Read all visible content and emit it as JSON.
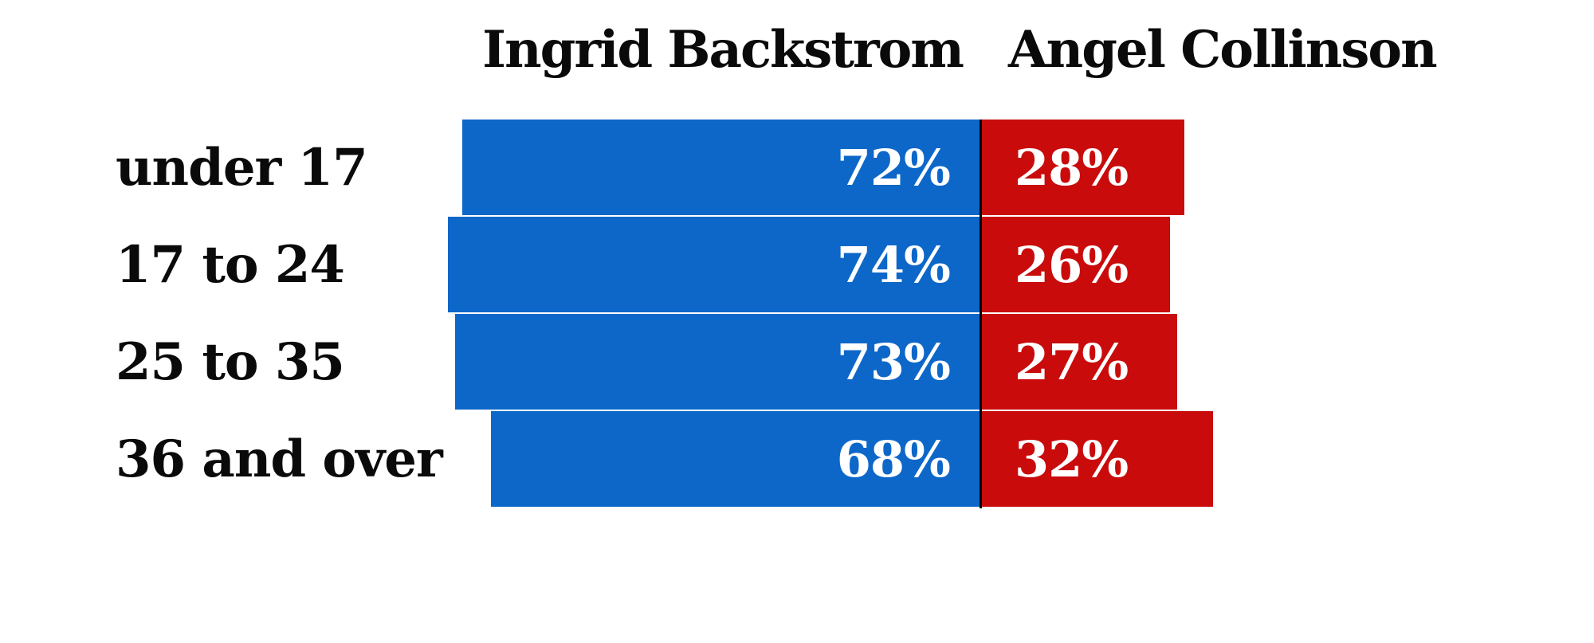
{
  "chart_data": {
    "type": "bar",
    "subtype": "horizontal-diverging-stacked",
    "title": "",
    "categories": [
      "under 17",
      "17 to 24",
      "25 to 35",
      "36 and over"
    ],
    "series": [
      {
        "name": "Ingrid Backstrom",
        "color": "#0d67c9",
        "values": [
          72,
          74,
          73,
          68
        ]
      },
      {
        "name": "Angel Collinson",
        "color": "#c90b0b",
        "values": [
          28,
          26,
          27,
          32
        ]
      }
    ],
    "labels": {
      "left": [
        "72%",
        "74%",
        "73%",
        "68%"
      ],
      "right": [
        "28%",
        "26%",
        "27%",
        "32%"
      ]
    },
    "value_unit": "%",
    "axis_range": [
      0,
      100
    ],
    "grid": false,
    "legend_position": "column-headers-top"
  },
  "colors": {
    "left_bar": "#0d67c9",
    "right_bar": "#c90b0b",
    "divider": "#000000",
    "label_text": "#0a0a0a",
    "bar_text": "#ffffff",
    "background": "#ffffff"
  }
}
